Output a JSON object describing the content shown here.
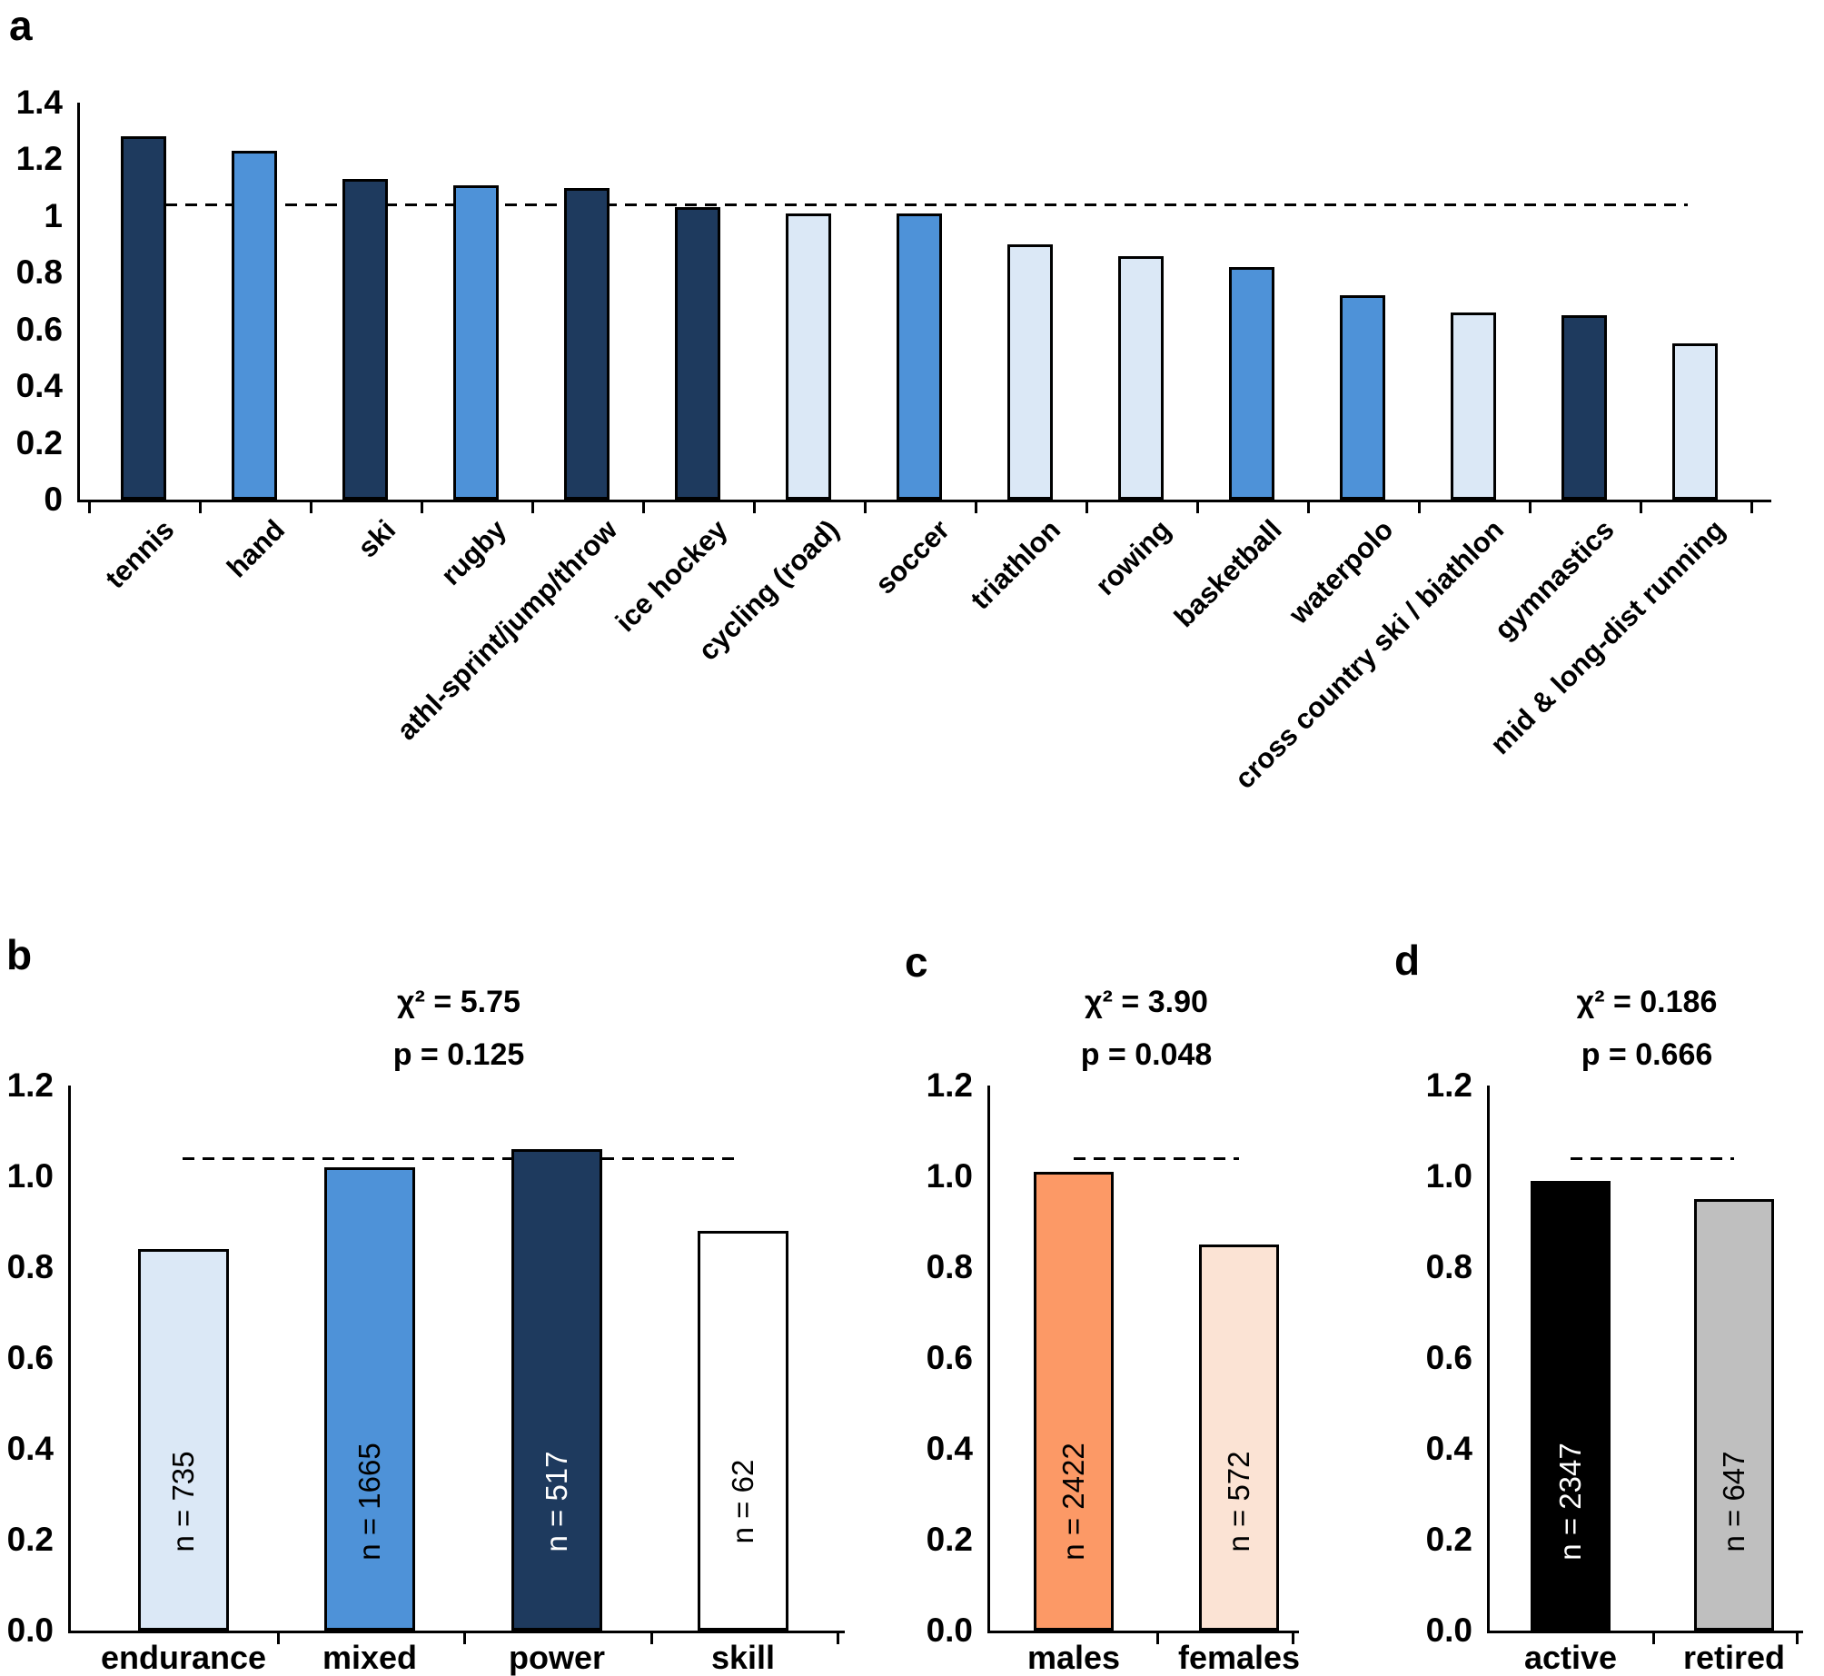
{
  "chart_data": [
    {
      "id": "a",
      "panel_label": "a",
      "type": "bar",
      "categories": [
        "tennis",
        "hand",
        "ski",
        "rugby",
        "athl-sprint/jump/throw",
        "ice hockey",
        "cycling (road)",
        "soccer",
        "triathlon",
        "rowing",
        "basketball",
        "waterpolo",
        "cross country ski / biathlon",
        "gymnastics",
        "mid & long-dist running"
      ],
      "values": [
        1.28,
        1.23,
        1.13,
        1.11,
        1.1,
        1.03,
        1.01,
        1.01,
        0.9,
        0.86,
        0.82,
        0.72,
        0.66,
        0.65,
        0.55
      ],
      "bar_colors": [
        "#1E3A5E",
        "#4E92D8",
        "#1E3A5E",
        "#4E92D8",
        "#1E3A5E",
        "#1E3A5E",
        "#DBE8F6",
        "#4E92D8",
        "#DBE8F6",
        "#DBE8F6",
        "#4E92D8",
        "#4E92D8",
        "#DBE8F6",
        "#1E3A5E",
        "#DBE8F6"
      ],
      "ylim": [
        0,
        1.4
      ],
      "y_ticks": [
        "1.4",
        "1.2",
        "1",
        "0.8",
        "0.6",
        "0.4",
        "0.2",
        "0"
      ],
      "reference_line": 1.04,
      "grid": "off",
      "legend": "none"
    },
    {
      "id": "b",
      "panel_label": "b",
      "type": "bar",
      "stats": {
        "chi2": "χ² = 5.75",
        "p": "p = 0.125"
      },
      "categories": [
        "endurance",
        "mixed",
        "power",
        "skill"
      ],
      "values": [
        0.84,
        1.02,
        1.06,
        0.88
      ],
      "bar_colors": [
        "#DBE8F6",
        "#4E92D8",
        "#1E3A5E",
        "#FFFFFF"
      ],
      "n_labels": [
        "n = 735",
        "n = 1665",
        "n = 517",
        "n = 62"
      ],
      "n_label_colors": [
        "#000000",
        "#000000",
        "#FFFFFF",
        "#000000"
      ],
      "ylim": [
        0,
        1.2
      ],
      "y_ticks": [
        "1.2",
        "1.0",
        "0.8",
        "0.6",
        "0.4",
        "0.2",
        "0.0"
      ],
      "reference_line": 1.04,
      "grid": "off",
      "legend": "none"
    },
    {
      "id": "c",
      "panel_label": "c",
      "type": "bar",
      "stats": {
        "chi2": "χ² = 3.90",
        "p": "p = 0.048"
      },
      "categories": [
        "males",
        "females"
      ],
      "values": [
        1.01,
        0.85
      ],
      "bar_colors": [
        "#FC9966",
        "#FBE3D4"
      ],
      "n_labels": [
        "n = 2422",
        "n = 572"
      ],
      "n_label_colors": [
        "#000000",
        "#000000"
      ],
      "ylim": [
        0,
        1.2
      ],
      "y_ticks": [
        "1.2",
        "1.0",
        "0.8",
        "0.6",
        "0.4",
        "0.2",
        "0.0"
      ],
      "reference_line": 1.04,
      "grid": "off",
      "legend": "none"
    },
    {
      "id": "d",
      "panel_label": "d",
      "type": "bar",
      "stats": {
        "chi2": "χ² = 0.186",
        "p": "p = 0.666"
      },
      "categories": [
        "active",
        "retired"
      ],
      "values": [
        0.99,
        0.95
      ],
      "bar_colors": [
        "#000000",
        "#BFBFBF"
      ],
      "n_labels": [
        "n = 2347",
        "n = 647"
      ],
      "n_label_colors": [
        "#FFFFFF",
        "#000000"
      ],
      "ylim": [
        0,
        1.2
      ],
      "y_ticks": [
        "1.2",
        "1.0",
        "0.8",
        "0.6",
        "0.4",
        "0.2",
        "0.0"
      ],
      "reference_line": 1.04,
      "grid": "off",
      "legend": "none"
    }
  ]
}
